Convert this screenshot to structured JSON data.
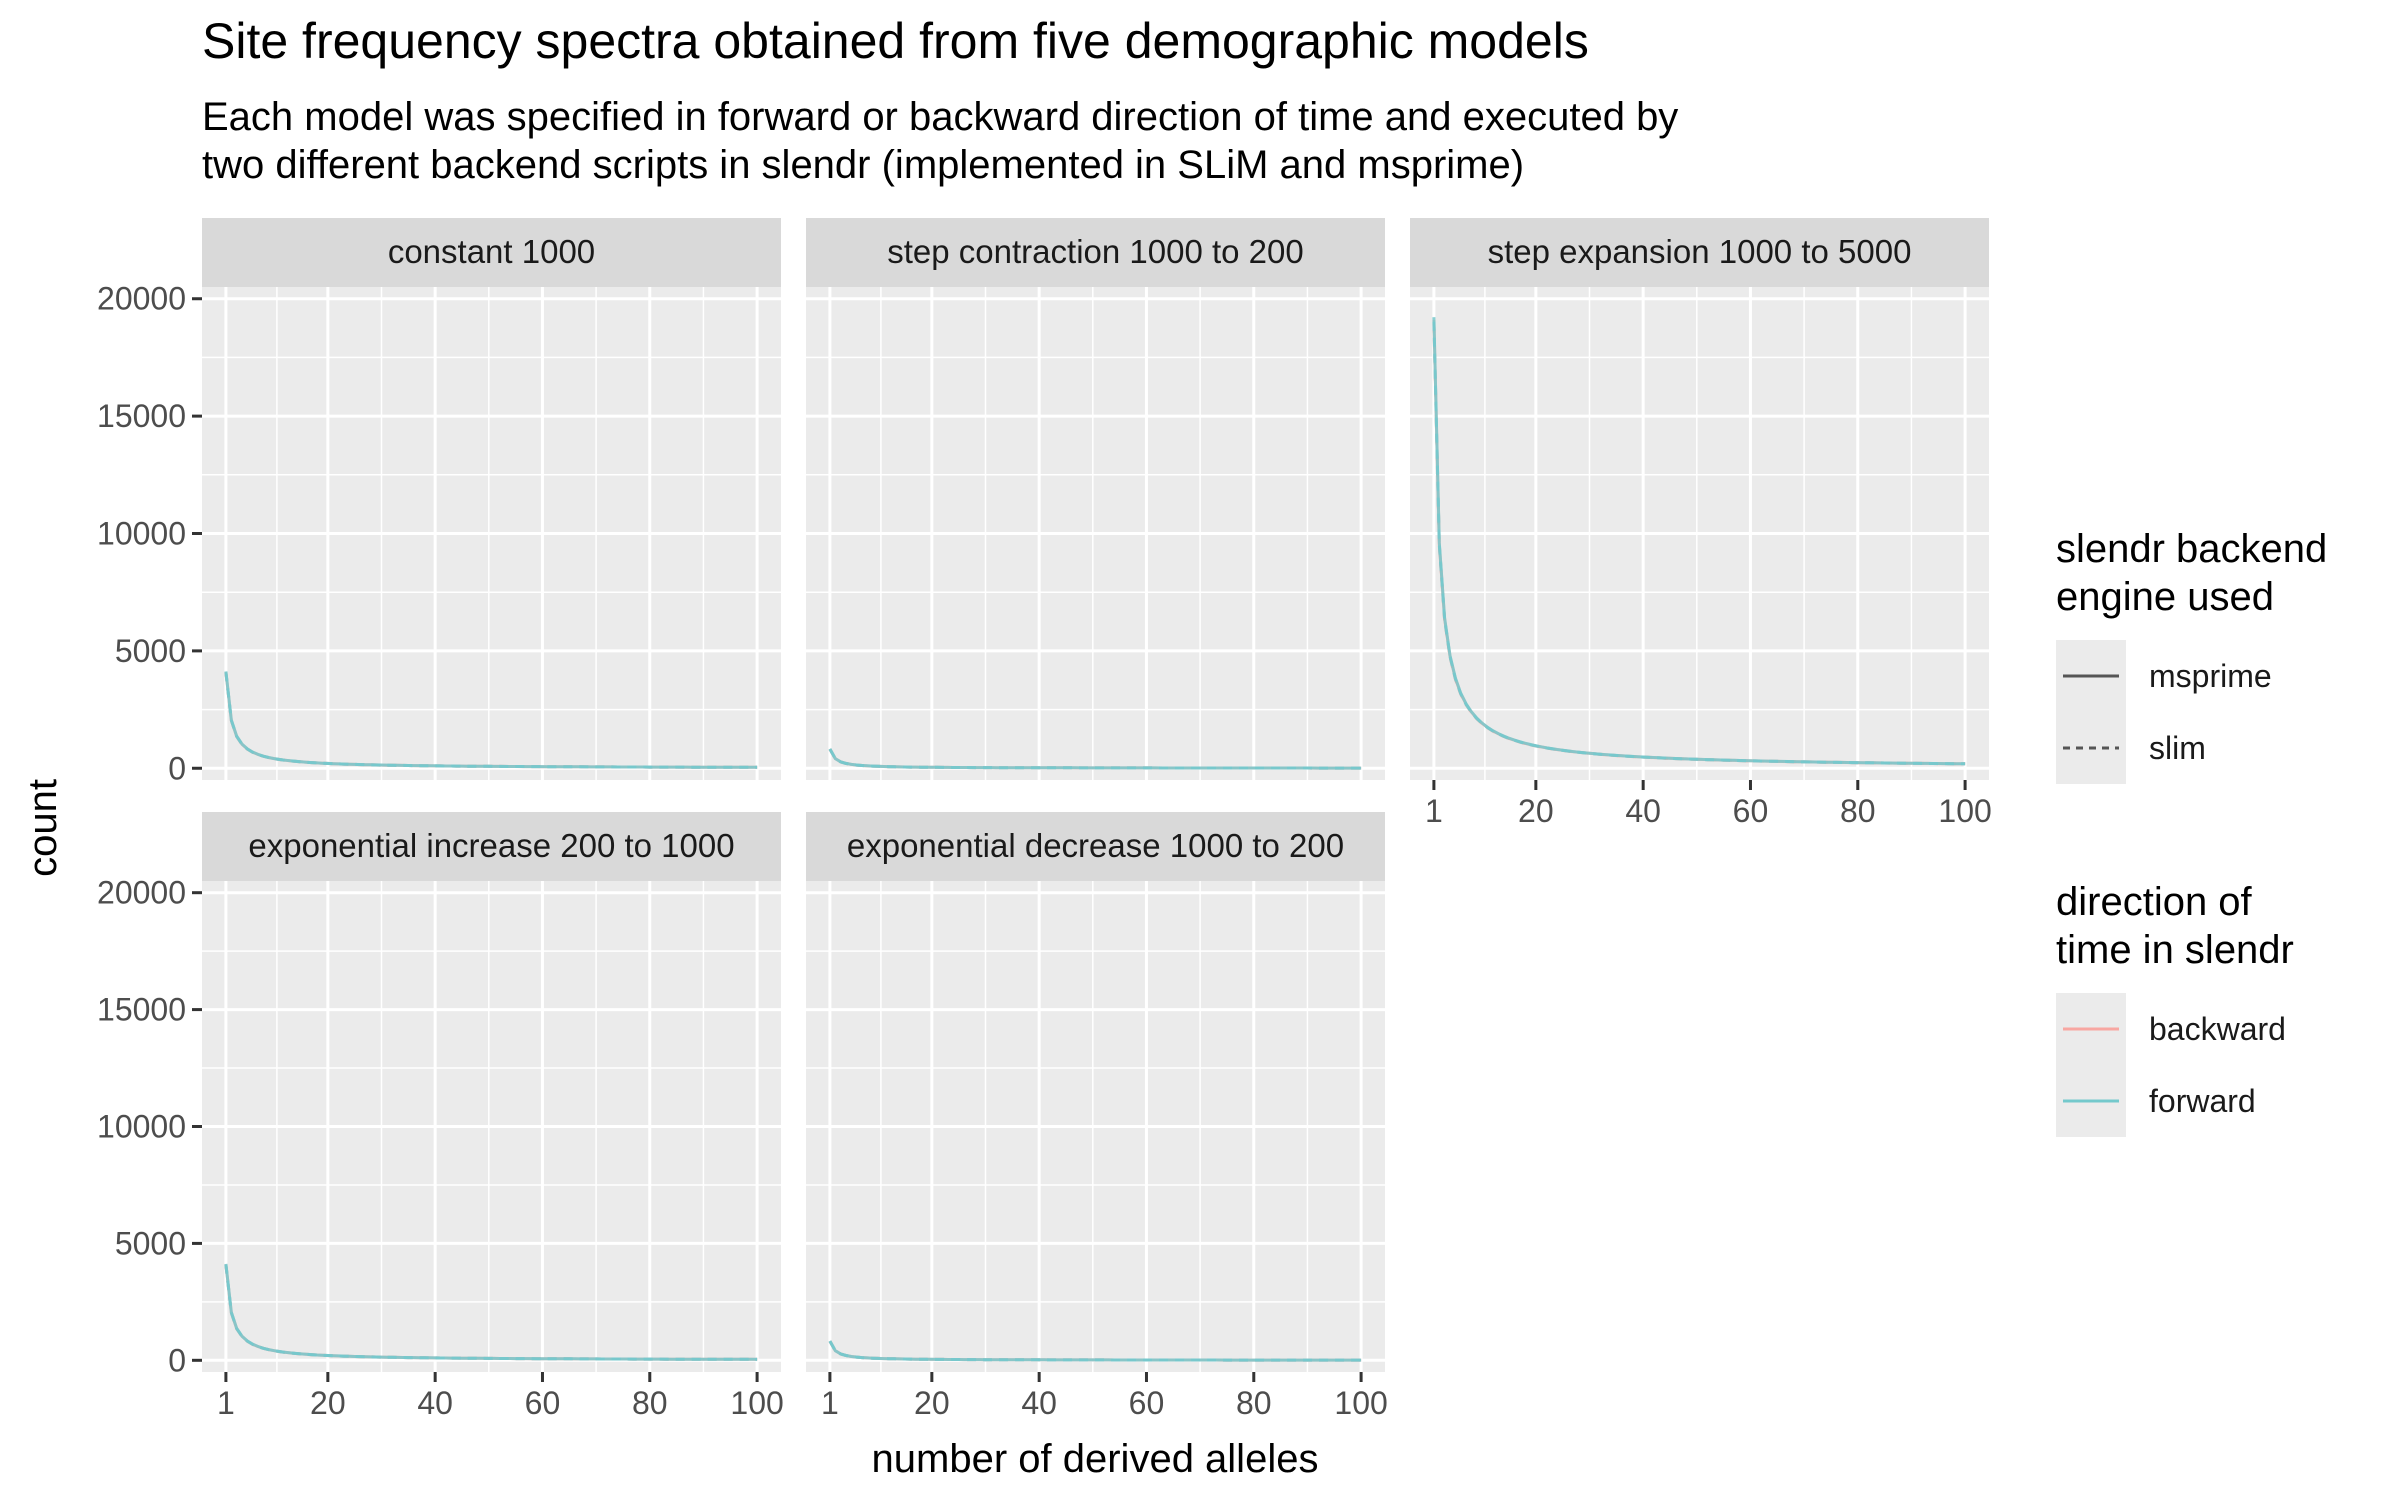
{
  "chart_data": {
    "type": "line",
    "title": "Site frequency spectra obtained from five demographic models",
    "subtitle_lines": [
      "Each model was specified in forward or backward direction of time and executed by",
      "two different backend scripts in slendr (implemented in SLiM and msprime)"
    ],
    "xlabel": "number of derived alleles",
    "ylabel": "count",
    "xlim": [
      1,
      100
    ],
    "ylim": [
      0,
      20000
    ],
    "x_ticks": [
      1,
      20,
      40,
      60,
      80,
      100
    ],
    "y_ticks": [
      0,
      5000,
      10000,
      15000,
      20000
    ],
    "grid": true,
    "legend_placement": "right",
    "colors": {
      "backward": "#F8A7A2",
      "forward": "#74C9CC",
      "panel_bg": "#EBEBEB",
      "strip_bg": "#D9D9D9",
      "grid": "#FFFFFF"
    },
    "panels": [
      {
        "title": "constant 1000",
        "theta": 4100
      },
      {
        "title": "step contraction 1000 to 200",
        "theta": 820
      },
      {
        "title": "step expansion 1000 to 5000",
        "theta": 19100
      },
      {
        "title": "exponential increase 200 to 1000",
        "theta": 4100
      },
      {
        "title": "exponential decrease 1000 to 200",
        "theta": 820
      }
    ],
    "legends": [
      {
        "title_lines": [
          "slendr backend",
          "engine used"
        ],
        "key": "linetype",
        "entries": [
          {
            "label": "msprime",
            "style": "solid"
          },
          {
            "label": "slim",
            "style": "dashed"
          }
        ]
      },
      {
        "title_lines": [
          "direction of",
          "time in slendr"
        ],
        "key": "colour",
        "entries": [
          {
            "label": "backward",
            "color": "#F8A7A2"
          },
          {
            "label": "forward",
            "color": "#74C9CC"
          }
        ]
      }
    ]
  }
}
